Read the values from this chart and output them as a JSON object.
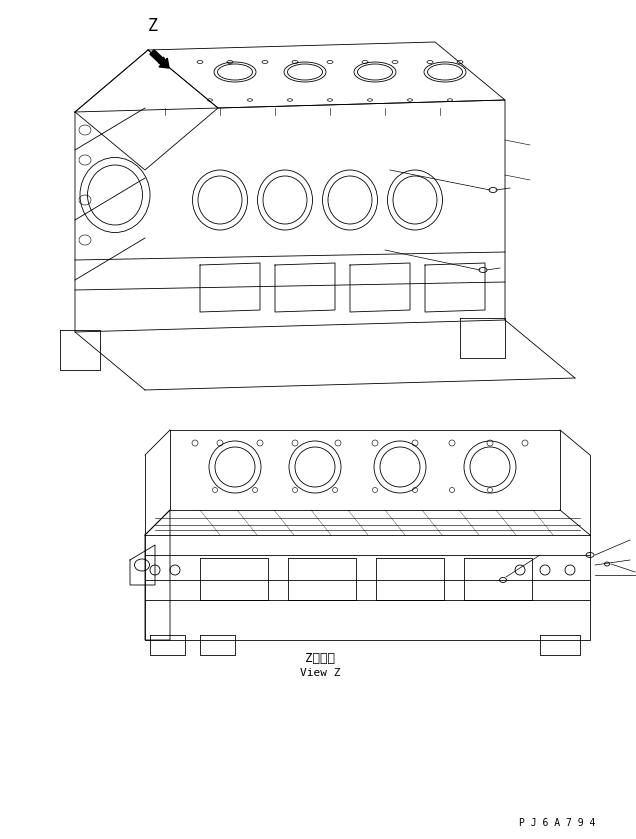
{
  "bg_color": "#ffffff",
  "line_color": "#000000",
  "fig_width": 6.36,
  "fig_height": 8.39,
  "label_z_top": "Z",
  "label_z_bottom": "Z　視",
  "label_view_z": "View Z",
  "part_number": "P J 6 A 7 9 4",
  "font_size_z": 12,
  "font_size_labels": 8,
  "font_size_part": 7
}
